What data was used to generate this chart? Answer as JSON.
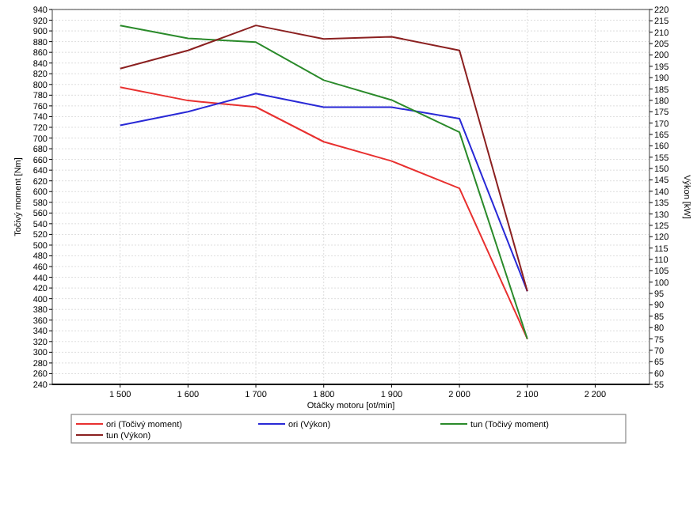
{
  "chart_data": {
    "type": "line",
    "xlabel": "Otáčky motoru [ot/min]",
    "ylabel": "Točivý moment [Nm]",
    "y2label": "Výkon [kW]",
    "x": [
      1500,
      1600,
      1700,
      1800,
      1900,
      2000,
      2100
    ],
    "xlim": [
      1400,
      2280
    ],
    "xticks": [
      {
        "value": 1500,
        "label": "1 500"
      },
      {
        "value": 1600,
        "label": "1 600"
      },
      {
        "value": 1700,
        "label": "1 700"
      },
      {
        "value": 1800,
        "label": "1 800"
      },
      {
        "value": 1900,
        "label": "1 900"
      },
      {
        "value": 2000,
        "label": "2 000"
      },
      {
        "value": 2100,
        "label": "2 100"
      },
      {
        "value": 2200,
        "label": "2 200"
      }
    ],
    "ylim": [
      240,
      940
    ],
    "yticks": [
      240,
      260,
      280,
      300,
      320,
      340,
      360,
      380,
      400,
      420,
      440,
      460,
      480,
      500,
      520,
      540,
      560,
      580,
      600,
      620,
      640,
      660,
      680,
      700,
      720,
      740,
      760,
      780,
      800,
      820,
      840,
      860,
      880,
      900,
      920,
      940
    ],
    "y2lim": [
      55,
      220
    ],
    "y2ticks": [
      55,
      60,
      65,
      70,
      75,
      80,
      85,
      90,
      95,
      100,
      105,
      110,
      115,
      120,
      125,
      130,
      135,
      140,
      145,
      150,
      155,
      160,
      165,
      170,
      175,
      180,
      185,
      190,
      195,
      200,
      205,
      210,
      215,
      220
    ],
    "grid": true,
    "legend": "bottom",
    "line_style": "solid",
    "marker": "none",
    "series": [
      {
        "name": "ori (Točivý moment)",
        "color": "#e8302f",
        "values": [
          795,
          770,
          758,
          693,
          657,
          606,
          325
        ]
      },
      {
        "name": "ori (Výkon)",
        "color": "#2929d6",
        "axis": "y2",
        "values": [
          169,
          175,
          183,
          177,
          177,
          172,
          96
        ]
      },
      {
        "name": "tun (Točivý moment)",
        "color": "#2a8a2a",
        "values": [
          910,
          886,
          879,
          808,
          771,
          711,
          325
        ]
      },
      {
        "name": "tun (Výkon)",
        "color": "#8b2020",
        "axis": "y2",
        "values": [
          194,
          202,
          213,
          207,
          208,
          202,
          96
        ]
      }
    ]
  }
}
